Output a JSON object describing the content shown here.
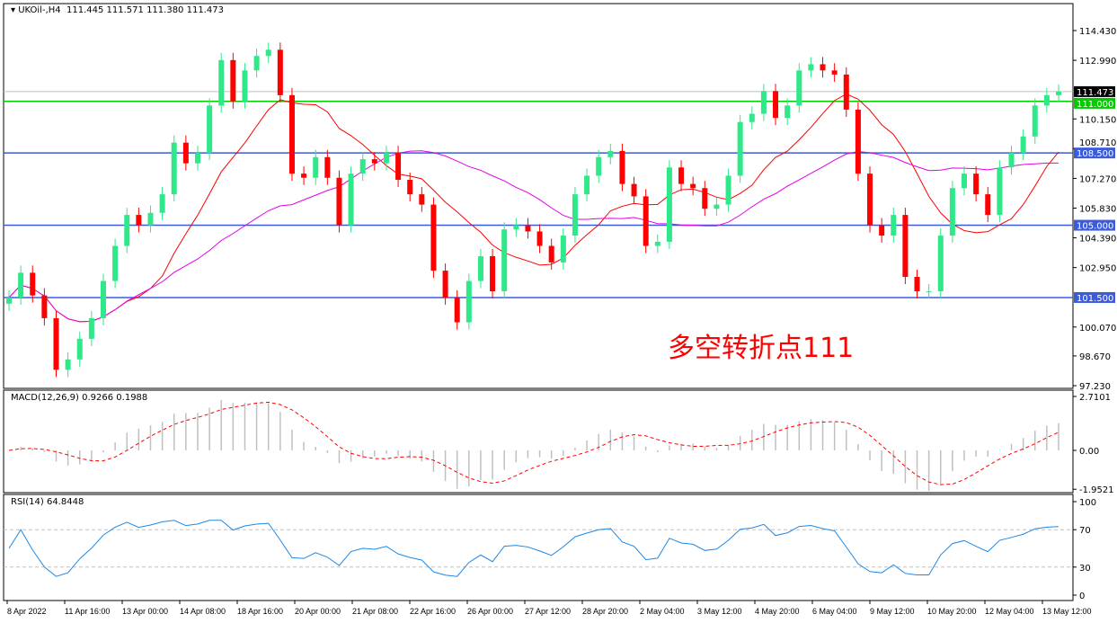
{
  "header": {
    "symbol": "UKOil-,H4",
    "ohlc": "111.445 111.571 111.380 111.473"
  },
  "annotation": "多空转折点111",
  "colors": {
    "bull": "#2ee88a",
    "bear": "#ff0000",
    "ma_fast": "#ff0000",
    "ma_slow": "#e600e6",
    "level_blue": "#3b5bdb",
    "level_green": "#00cc00",
    "rsi": "#1e88e5",
    "macd_signal": "#ff0000",
    "macd_hist": "#c0c0c0"
  },
  "chart_data": [
    {
      "type": "candlestick",
      "title": "UKOil-,H4",
      "ylim": [
        97.23,
        114.43
      ],
      "y_ticks": [
        "114.430",
        "112.990",
        "110.150",
        "108.710",
        "107.270",
        "105.830",
        "104.390",
        "102.950",
        "100.070",
        "98.670",
        "97.230"
      ],
      "x_ticks": [
        "8 Apr 2022",
        "11 Apr 16:00",
        "13 Apr 00:00",
        "14 Apr 08:00",
        "18 Apr 16:00",
        "20 Apr 00:00",
        "21 Apr 08:00",
        "22 Apr 16:00",
        "26 Apr 00:00",
        "27 Apr 12:00",
        "28 Apr 20:00",
        "2 May 04:00",
        "3 May 12:00",
        "4 May 20:00",
        "6 May 04:00",
        "9 May 12:00",
        "10 May 20:00",
        "12 May 04:00",
        "13 May 12:00"
      ],
      "closes": [
        101.5,
        102.7,
        101.6,
        100.5,
        98.0,
        98.5,
        99.5,
        100.5,
        102.3,
        104.0,
        105.5,
        105.0,
        105.6,
        106.5,
        109.0,
        108.0,
        108.5,
        110.8,
        113.0,
        111.0,
        112.5,
        113.2,
        113.5,
        111.3,
        107.5,
        107.3,
        108.3,
        107.3,
        105.0,
        107.5,
        108.2,
        108.0,
        108.5,
        107.2,
        106.5,
        106.0,
        102.8,
        101.5,
        100.3,
        102.3,
        103.5,
        101.8,
        104.8,
        105.0,
        104.7,
        104.0,
        103.2,
        104.5,
        106.5,
        107.4,
        108.3,
        108.6,
        107.0,
        106.4,
        104.0,
        104.2,
        107.8,
        107.0,
        106.8,
        105.8,
        106.0,
        107.4,
        110.0,
        110.4,
        111.5,
        110.2,
        110.8,
        112.5,
        112.8,
        112.5,
        112.3,
        110.6,
        107.5,
        105.0,
        104.5,
        105.5,
        102.5,
        101.8,
        101.8,
        104.5,
        106.8,
        107.5,
        106.5,
        105.5,
        107.8,
        108.5,
        109.3,
        110.8,
        111.3,
        111.473
      ],
      "levels": [
        {
          "label": "111.000",
          "value": 111.0,
          "color": "#00cc00"
        },
        {
          "label": "108.500",
          "value": 108.5,
          "color": "#3b5bdb"
        },
        {
          "label": "105.000",
          "value": 105.0,
          "color": "#3b5bdb"
        },
        {
          "label": "101.500",
          "value": 101.5,
          "color": "#3b5bdb"
        }
      ],
      "current_price": {
        "label": "111.473",
        "value": 111.473
      }
    },
    {
      "type": "macd",
      "title": "MACD(12,26,9) 0.9266 0.1988",
      "ylim": [
        -1.9521,
        2.7101
      ],
      "y_ticks": [
        "2.7101",
        "0.00",
        "-1.9521"
      ]
    },
    {
      "type": "line",
      "title": "RSI(14) 64.8448",
      "ylim": [
        0,
        100
      ],
      "y_ticks": [
        "100",
        "70",
        "30",
        "0"
      ]
    }
  ]
}
